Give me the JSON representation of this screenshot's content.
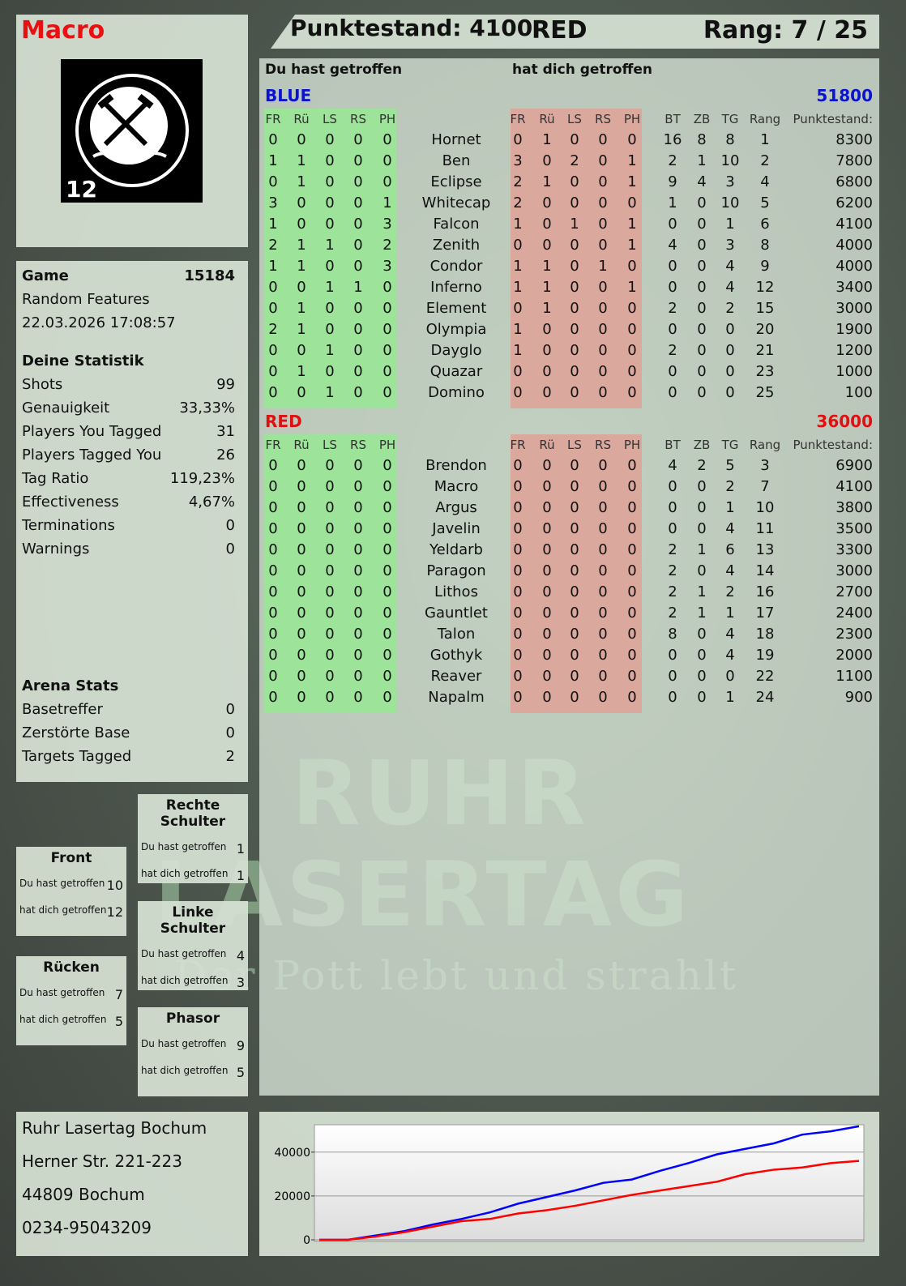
{
  "player": {
    "name": "Macro",
    "badge_number": "12",
    "logo_text": "RUHR LASERTAG"
  },
  "header": {
    "score_label": "Punktestand: 4100",
    "team": "RED",
    "rank_label": "Rang: 7 / 25"
  },
  "left_stats": {
    "game_label": "Game",
    "game_id": "15184",
    "mode": "Random Features",
    "datetime": "22.03.2026 17:08:57",
    "stats_title": "Deine Statistik",
    "stats": [
      {
        "label": "Shots",
        "value": "99"
      },
      {
        "label": "Genauigkeit",
        "value": "33,33%"
      },
      {
        "label": "Players You Tagged",
        "value": "31"
      },
      {
        "label": "Players Tagged You",
        "value": "26"
      },
      {
        "label": "Tag Ratio",
        "value": "119,23%"
      },
      {
        "label": "Effectiveness",
        "value": "4,67%"
      },
      {
        "label": "Terminations",
        "value": "0"
      },
      {
        "label": "Warnings",
        "value": "0"
      }
    ],
    "arena_title": "Arena Stats",
    "arena": [
      {
        "label": "Basetreffer",
        "value": "0"
      },
      {
        "label": "Zerstörte Base",
        "value": "0"
      },
      {
        "label": "Targets Tagged",
        "value": "2"
      }
    ]
  },
  "hitboxes": [
    {
      "title": "Rechte Schulter",
      "hit_label": "Du hast getroffen",
      "hit": "1",
      "got_label": "hat dich getroffen",
      "got": "1"
    },
    {
      "title": "Front",
      "hit_label": "Du hast getroffen",
      "hit": "10",
      "got_label": "hat dich getroffen",
      "got": "12"
    },
    {
      "title": "Linke Schulter",
      "hit_label": "Du hast getroffen",
      "hit": "4",
      "got_label": "hat dich getroffen",
      "got": "3"
    },
    {
      "title": "Rücken",
      "hit_label": "Du hast getroffen",
      "hit": "7",
      "got_label": "hat dich getroffen",
      "got": "5"
    },
    {
      "title": "Phasor",
      "hit_label": "Du hast getroffen",
      "hit": "9",
      "got_label": "hat dich getroffen",
      "got": "5"
    }
  ],
  "address": [
    "Ruhr Lasertag Bochum",
    "Herner Str. 221-223",
    "44809 Bochum",
    "0234-95043209"
  ],
  "main": {
    "you_hit_label": "Du hast getroffen",
    "hit_you_label": "hat dich getroffen",
    "hit_columns": [
      "FR",
      "Rü",
      "LS",
      "RS",
      "PH"
    ],
    "stat_columns": [
      "BT",
      "ZB",
      "TG",
      "Rang",
      "Punktestand:"
    ],
    "teams": [
      {
        "name": "BLUE",
        "score": "51800",
        "color": "#0a14d0",
        "players": [
          {
            "name": "Hornet",
            "you_hit": [
              0,
              0,
              0,
              0,
              0
            ],
            "hit_you": [
              0,
              1,
              0,
              0,
              0
            ],
            "stats": [
              16,
              8,
              8,
              1,
              8300
            ]
          },
          {
            "name": "Ben",
            "you_hit": [
              1,
              1,
              0,
              0,
              0
            ],
            "hit_you": [
              3,
              0,
              2,
              0,
              1
            ],
            "stats": [
              2,
              1,
              10,
              2,
              7800
            ]
          },
          {
            "name": "Eclipse",
            "you_hit": [
              0,
              1,
              0,
              0,
              0
            ],
            "hit_you": [
              2,
              1,
              0,
              0,
              1
            ],
            "stats": [
              9,
              4,
              3,
              4,
              6800
            ]
          },
          {
            "name": "Whitecap",
            "you_hit": [
              3,
              0,
              0,
              0,
              1
            ],
            "hit_you": [
              2,
              0,
              0,
              0,
              0
            ],
            "stats": [
              1,
              0,
              10,
              5,
              6200
            ]
          },
          {
            "name": "Falcon",
            "you_hit": [
              1,
              0,
              0,
              0,
              3
            ],
            "hit_you": [
              1,
              0,
              1,
              0,
              1
            ],
            "stats": [
              0,
              0,
              1,
              6,
              4100
            ]
          },
          {
            "name": "Zenith",
            "you_hit": [
              2,
              1,
              1,
              0,
              2
            ],
            "hit_you": [
              0,
              0,
              0,
              0,
              1
            ],
            "stats": [
              4,
              0,
              3,
              8,
              4000
            ]
          },
          {
            "name": "Condor",
            "you_hit": [
              1,
              1,
              0,
              0,
              3
            ],
            "hit_you": [
              1,
              1,
              0,
              1,
              0
            ],
            "stats": [
              0,
              0,
              4,
              9,
              4000
            ]
          },
          {
            "name": "Inferno",
            "you_hit": [
              0,
              0,
              1,
              1,
              0
            ],
            "hit_you": [
              1,
              1,
              0,
              0,
              1
            ],
            "stats": [
              0,
              0,
              4,
              12,
              3400
            ]
          },
          {
            "name": "Element",
            "you_hit": [
              0,
              1,
              0,
              0,
              0
            ],
            "hit_you": [
              0,
              1,
              0,
              0,
              0
            ],
            "stats": [
              2,
              0,
              2,
              15,
              3000
            ]
          },
          {
            "name": "Olympia",
            "you_hit": [
              2,
              1,
              0,
              0,
              0
            ],
            "hit_you": [
              1,
              0,
              0,
              0,
              0
            ],
            "stats": [
              0,
              0,
              0,
              20,
              1900
            ]
          },
          {
            "name": "Dayglo",
            "you_hit": [
              0,
              0,
              1,
              0,
              0
            ],
            "hit_you": [
              1,
              0,
              0,
              0,
              0
            ],
            "stats": [
              2,
              0,
              0,
              21,
              1200
            ]
          },
          {
            "name": "Quazar",
            "you_hit": [
              0,
              1,
              0,
              0,
              0
            ],
            "hit_you": [
              0,
              0,
              0,
              0,
              0
            ],
            "stats": [
              0,
              0,
              0,
              23,
              1000
            ]
          },
          {
            "name": "Domino",
            "you_hit": [
              0,
              0,
              1,
              0,
              0
            ],
            "hit_you": [
              0,
              0,
              0,
              0,
              0
            ],
            "stats": [
              0,
              0,
              0,
              25,
              100
            ]
          }
        ]
      },
      {
        "name": "RED",
        "score": "36000",
        "color": "#e01010",
        "players": [
          {
            "name": "Brendon",
            "you_hit": [
              0,
              0,
              0,
              0,
              0
            ],
            "hit_you": [
              0,
              0,
              0,
              0,
              0
            ],
            "stats": [
              4,
              2,
              5,
              3,
              6900
            ]
          },
          {
            "name": "Macro",
            "you_hit": [
              0,
              0,
              0,
              0,
              0
            ],
            "hit_you": [
              0,
              0,
              0,
              0,
              0
            ],
            "stats": [
              0,
              0,
              2,
              7,
              4100
            ]
          },
          {
            "name": "Argus",
            "you_hit": [
              0,
              0,
              0,
              0,
              0
            ],
            "hit_you": [
              0,
              0,
              0,
              0,
              0
            ],
            "stats": [
              0,
              0,
              1,
              10,
              3800
            ]
          },
          {
            "name": "Javelin",
            "you_hit": [
              0,
              0,
              0,
              0,
              0
            ],
            "hit_you": [
              0,
              0,
              0,
              0,
              0
            ],
            "stats": [
              0,
              0,
              4,
              11,
              3500
            ]
          },
          {
            "name": "Yeldarb",
            "you_hit": [
              0,
              0,
              0,
              0,
              0
            ],
            "hit_you": [
              0,
              0,
              0,
              0,
              0
            ],
            "stats": [
              2,
              1,
              6,
              13,
              3300
            ]
          },
          {
            "name": "Paragon",
            "you_hit": [
              0,
              0,
              0,
              0,
              0
            ],
            "hit_you": [
              0,
              0,
              0,
              0,
              0
            ],
            "stats": [
              2,
              0,
              4,
              14,
              3000
            ]
          },
          {
            "name": "Lithos",
            "you_hit": [
              0,
              0,
              0,
              0,
              0
            ],
            "hit_you": [
              0,
              0,
              0,
              0,
              0
            ],
            "stats": [
              2,
              1,
              2,
              16,
              2700
            ]
          },
          {
            "name": "Gauntlet",
            "you_hit": [
              0,
              0,
              0,
              0,
              0
            ],
            "hit_you": [
              0,
              0,
              0,
              0,
              0
            ],
            "stats": [
              2,
              1,
              1,
              17,
              2400
            ]
          },
          {
            "name": "Talon",
            "you_hit": [
              0,
              0,
              0,
              0,
              0
            ],
            "hit_you": [
              0,
              0,
              0,
              0,
              0
            ],
            "stats": [
              8,
              0,
              4,
              18,
              2300
            ]
          },
          {
            "name": "Gothyk",
            "you_hit": [
              0,
              0,
              0,
              0,
              0
            ],
            "hit_you": [
              0,
              0,
              0,
              0,
              0
            ],
            "stats": [
              0,
              0,
              4,
              19,
              2000
            ]
          },
          {
            "name": "Reaver",
            "you_hit": [
              0,
              0,
              0,
              0,
              0
            ],
            "hit_you": [
              0,
              0,
              0,
              0,
              0
            ],
            "stats": [
              0,
              0,
              0,
              22,
              1100
            ]
          },
          {
            "name": "Napalm",
            "you_hit": [
              0,
              0,
              0,
              0,
              0
            ],
            "hit_you": [
              0,
              0,
              0,
              0,
              0
            ],
            "stats": [
              0,
              0,
              1,
              24,
              900
            ]
          }
        ]
      }
    ]
  },
  "watermark": {
    "line1": "RUHR",
    "line2": "LASERTAG",
    "tagline": "Der Pott lebt und strahlt"
  },
  "colors": {
    "you_hit_bg": "#9de39a",
    "hit_you_bg": "#dba89e",
    "panel": "#d6e2d4"
  },
  "chart_data": {
    "type": "line",
    "title": "",
    "xlabel": "",
    "ylabel": "",
    "ylim": [
      0,
      52500
    ],
    "yticks": [
      0,
      20000,
      40000
    ],
    "grid": true,
    "series": [
      {
        "color": "#0000ff",
        "values": [
          0,
          0,
          2000,
          4000,
          7000,
          9500,
          12500,
          16500,
          19500,
          22500,
          26000,
          27500,
          31500,
          35000,
          39000,
          41500,
          44000,
          48000,
          49500,
          51800
        ]
      },
      {
        "color": "#ff0000",
        "values": [
          0,
          0,
          1500,
          3500,
          6000,
          8500,
          9500,
          12000,
          13500,
          15500,
          18000,
          20500,
          22500,
          24500,
          26500,
          30000,
          32000,
          33000,
          35000,
          36000
        ]
      }
    ]
  }
}
